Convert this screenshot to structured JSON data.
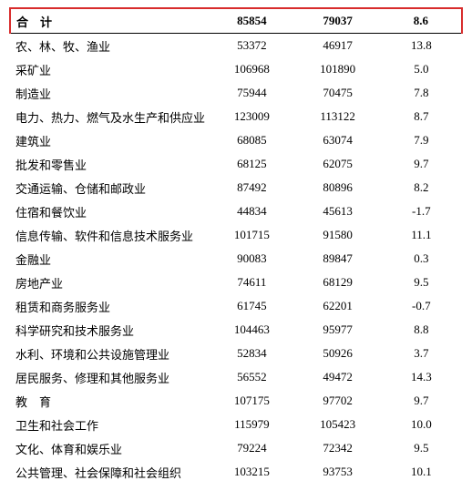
{
  "table": {
    "highlight_color": "#d82c2c",
    "text_color": "#000000",
    "background_color": "#ffffff",
    "font_size": 13,
    "total_row": {
      "label": "合　计",
      "v1": "85854",
      "v2": "79037",
      "v3": "8.6"
    },
    "rows": [
      {
        "label": "农、林、牧、渔业",
        "v1": "53372",
        "v2": "46917",
        "v3": "13.8"
      },
      {
        "label": "采矿业",
        "v1": "106968",
        "v2": "101890",
        "v3": "5.0"
      },
      {
        "label": "制造业",
        "v1": "75944",
        "v2": "70475",
        "v3": "7.8"
      },
      {
        "label": "电力、热力、燃气及水生产和供应业",
        "v1": "123009",
        "v2": "113122",
        "v3": "8.7"
      },
      {
        "label": "建筑业",
        "v1": "68085",
        "v2": "63074",
        "v3": "7.9"
      },
      {
        "label": "批发和零售业",
        "v1": "68125",
        "v2": "62075",
        "v3": "9.7"
      },
      {
        "label": "交通运输、仓储和邮政业",
        "v1": "87492",
        "v2": "80896",
        "v3": "8.2"
      },
      {
        "label": "住宿和餐饮业",
        "v1": "44834",
        "v2": "45613",
        "v3": "-1.7"
      },
      {
        "label": "信息传输、软件和信息技术服务业",
        "v1": "101715",
        "v2": "91580",
        "v3": "11.1"
      },
      {
        "label": "金融业",
        "v1": "90083",
        "v2": "89847",
        "v3": "0.3"
      },
      {
        "label": "房地产业",
        "v1": "74611",
        "v2": "68129",
        "v3": "9.5"
      },
      {
        "label": "租赁和商务服务业",
        "v1": "61745",
        "v2": "62201",
        "v3": "-0.7"
      },
      {
        "label": "科学研究和技术服务业",
        "v1": "104463",
        "v2": "95977",
        "v3": "8.8"
      },
      {
        "label": "水利、环境和公共设施管理业",
        "v1": "52834",
        "v2": "50926",
        "v3": "3.7"
      },
      {
        "label": "居民服务、修理和其他服务业",
        "v1": "56552",
        "v2": "49472",
        "v3": "14.3"
      },
      {
        "label": "教　育",
        "v1": "107175",
        "v2": "97702",
        "v3": "9.7"
      },
      {
        "label": "卫生和社会工作",
        "v1": "115979",
        "v2": "105423",
        "v3": "10.0"
      },
      {
        "label": "文化、体育和娱乐业",
        "v1": "79224",
        "v2": "72342",
        "v3": "9.5"
      },
      {
        "label": "公共管理、社会保障和社会组织",
        "v1": "103215",
        "v2": "93753",
        "v3": "10.1"
      }
    ]
  }
}
